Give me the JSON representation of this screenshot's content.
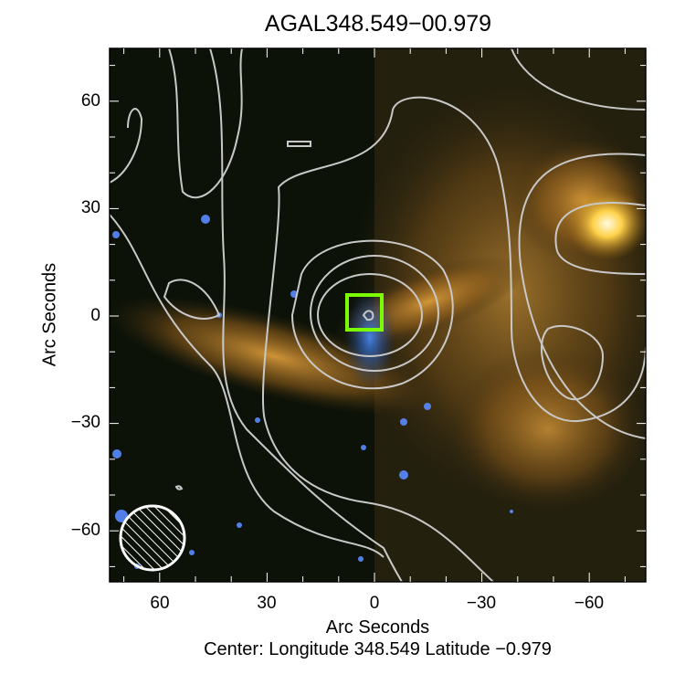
{
  "chart_data": {
    "type": "image-contour",
    "title": "AGAL348.549−00.979",
    "xlabel": "Arc Seconds",
    "ylabel": "Arc Seconds",
    "subtitle": "Center:  Longitude 348.549 Latitude −0.979",
    "xlim": [
      75,
      -75
    ],
    "ylim": [
      -75,
      75
    ],
    "xticks": [
      "60",
      "30",
      "0",
      "−30",
      "−60"
    ],
    "yticks": [
      "60",
      "30",
      "0",
      "−30",
      "−60"
    ],
    "marker": {
      "type": "square",
      "x": -2,
      "y": 1,
      "color": "#7cfc00"
    },
    "beam": {
      "type": "hatched-circle",
      "x": 62,
      "y": -62
    },
    "contour_color": "#c8c8c8"
  }
}
